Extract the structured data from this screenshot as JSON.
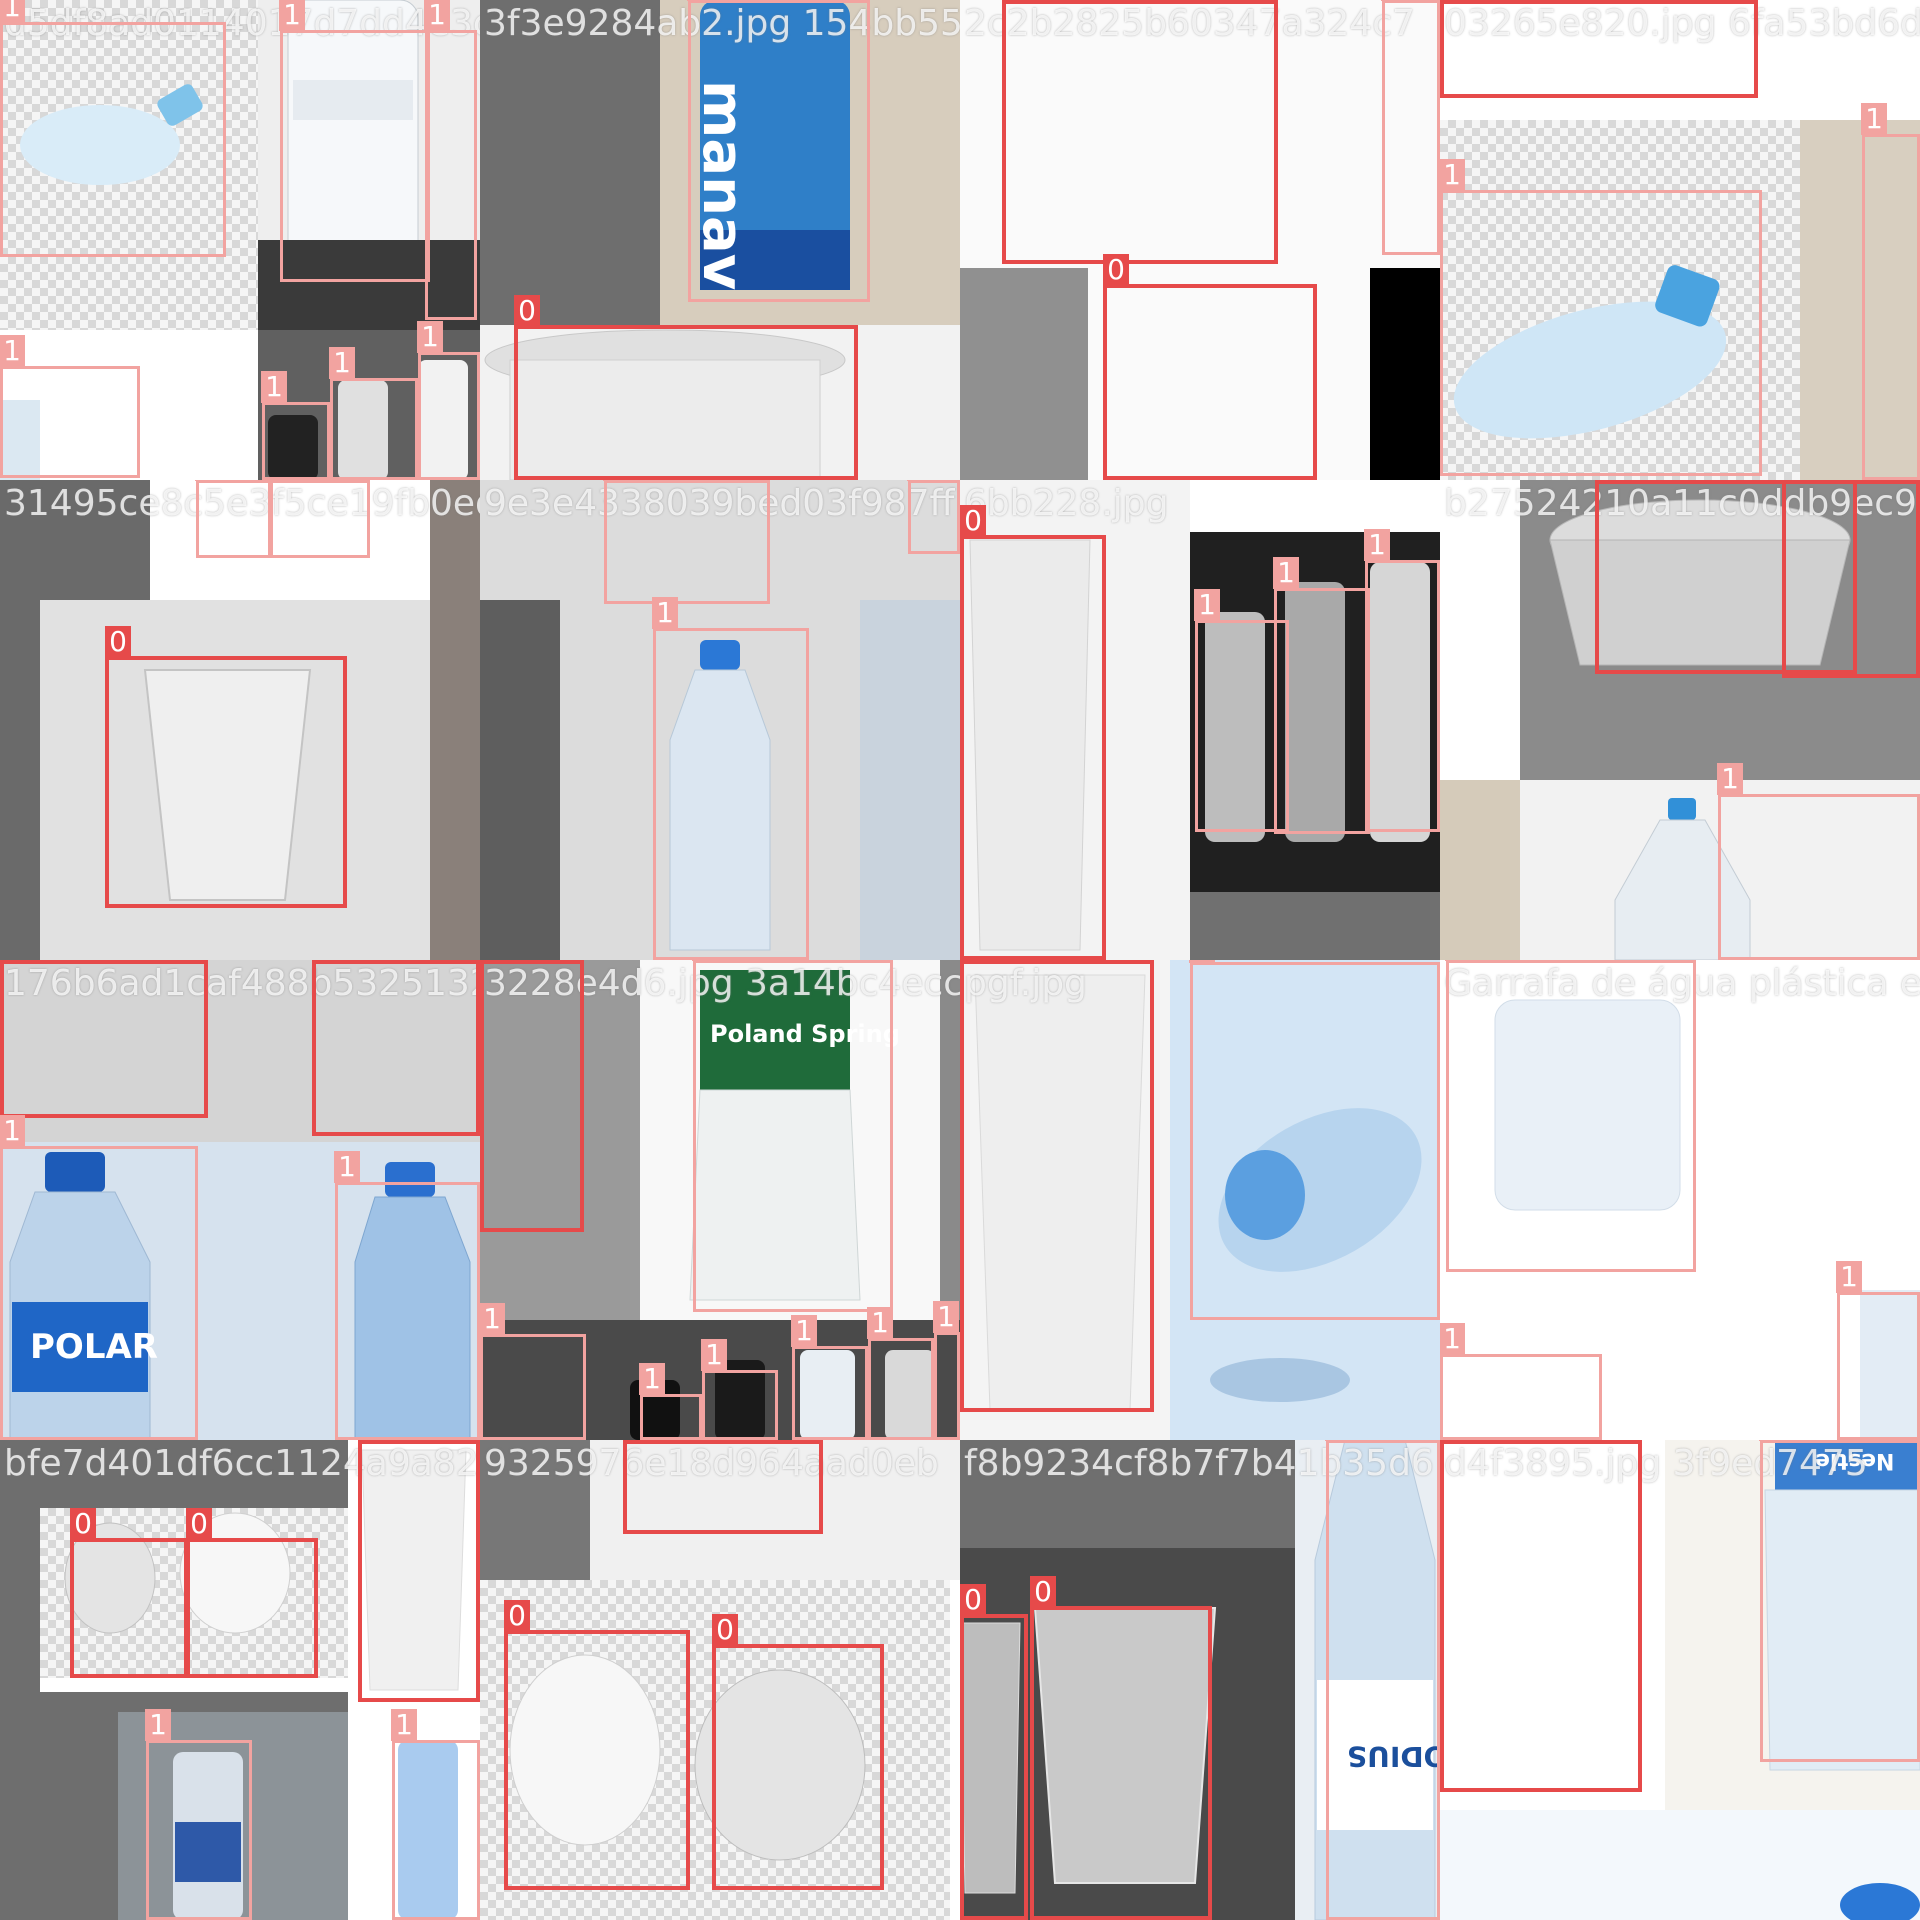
{
  "figure": {
    "kind": "object detection training batch mosaic",
    "classes": {
      "0": "cup",
      "1": "bottle"
    },
    "colors": {
      "class_0_box": "#e64a4a",
      "class_1_box": "#f2a3a0",
      "title_text": "#ffffff"
    }
  },
  "tiles": [
    {
      "title": "d5df8ad0114017d7dd4e3c72d4ab2.jpg",
      "boxes": [
        {
          "label": "1"
        },
        {
          "label": "1"
        },
        {
          "label": "1"
        },
        {
          "label": "1"
        },
        {
          "label": "1"
        },
        {
          "label": "1"
        },
        {
          "label": "1"
        },
        {
          "label": "1"
        }
      ]
    },
    {
      "title": "3f3e9284ab2.jpg 154bb55ca2be",
      "brand": "manav",
      "boxes": [
        {
          "label": "1"
        },
        {
          "label": "0"
        }
      ]
    },
    {
      "title": "2c2b2825b60347a324c7",
      "boxes": [
        {
          "label": "0"
        },
        {
          "label": "0"
        },
        {
          "label": "1"
        }
      ]
    },
    {
      "title": "03265e820.jpg 6fa53bd6d624",
      "boxes": [
        {
          "label": "0"
        },
        {
          "label": "1"
        },
        {
          "label": "1"
        }
      ]
    },
    {
      "title": "31495ce8c5e3f5ce19fb0eda",
      "boxes": [
        {
          "label": "1"
        },
        {
          "label": "1"
        },
        {
          "label": "0"
        }
      ]
    },
    {
      "title": "9e3e4338039bed03f987ff",
      "boxes": [
        {
          "label": "1"
        },
        {
          "label": "1"
        },
        {
          "label": "1"
        }
      ]
    },
    {
      "title": "6bb228.jpg",
      "boxes": [
        {
          "label": "0"
        },
        {
          "label": "1"
        },
        {
          "label": "1"
        },
        {
          "label": "1"
        }
      ]
    },
    {
      "title": "b27524210a11c0ddb9ec9a",
      "boxes": [
        {
          "label": "0"
        },
        {
          "label": "0"
        },
        {
          "label": "1"
        }
      ]
    },
    {
      "title": "176b6ad1caf488b53251328",
      "brand": "POLAR",
      "boxes": [
        {
          "label": "0"
        },
        {
          "label": "0"
        },
        {
          "label": "1"
        },
        {
          "label": "1"
        }
      ]
    },
    {
      "title": "3228e4d6.jpg 3a14bc4ecc",
      "brand": "Poland Spring",
      "boxes": [
        {
          "label": "0"
        },
        {
          "label": "1"
        },
        {
          "label": "1"
        },
        {
          "label": "1"
        },
        {
          "label": "1"
        },
        {
          "label": "1"
        },
        {
          "label": "1"
        },
        {
          "label": "1"
        }
      ]
    },
    {
      "title": "pgf.jpg",
      "boxes": [
        {
          "label": "0"
        },
        {
          "label": "1"
        }
      ]
    },
    {
      "title": "Garrafa de água plástica em",
      "boxes": [
        {
          "label": "1"
        },
        {
          "label": "1"
        },
        {
          "label": "1"
        }
      ]
    },
    {
      "title": "bfe7d401df6cc1124a9a824a",
      "boxes": [
        {
          "label": "0"
        },
        {
          "label": "0"
        },
        {
          "label": "0"
        },
        {
          "label": "1"
        },
        {
          "label": "1"
        }
      ]
    },
    {
      "title": "9325976e18d964aad0eb",
      "boxes": [
        {
          "label": "0"
        },
        {
          "label": "0"
        },
        {
          "label": "0"
        }
      ]
    },
    {
      "title": "f8b9234cf8b7f7b41b35d6",
      "brand": "BODIUS",
      "boxes": [
        {
          "label": "0"
        },
        {
          "label": "0"
        },
        {
          "label": "1"
        }
      ]
    },
    {
      "title": "d4f3895.jpg 3f9ed7475",
      "brand": "Nestle",
      "boxes": [
        {
          "label": "0"
        },
        {
          "label": "1"
        }
      ]
    }
  ]
}
